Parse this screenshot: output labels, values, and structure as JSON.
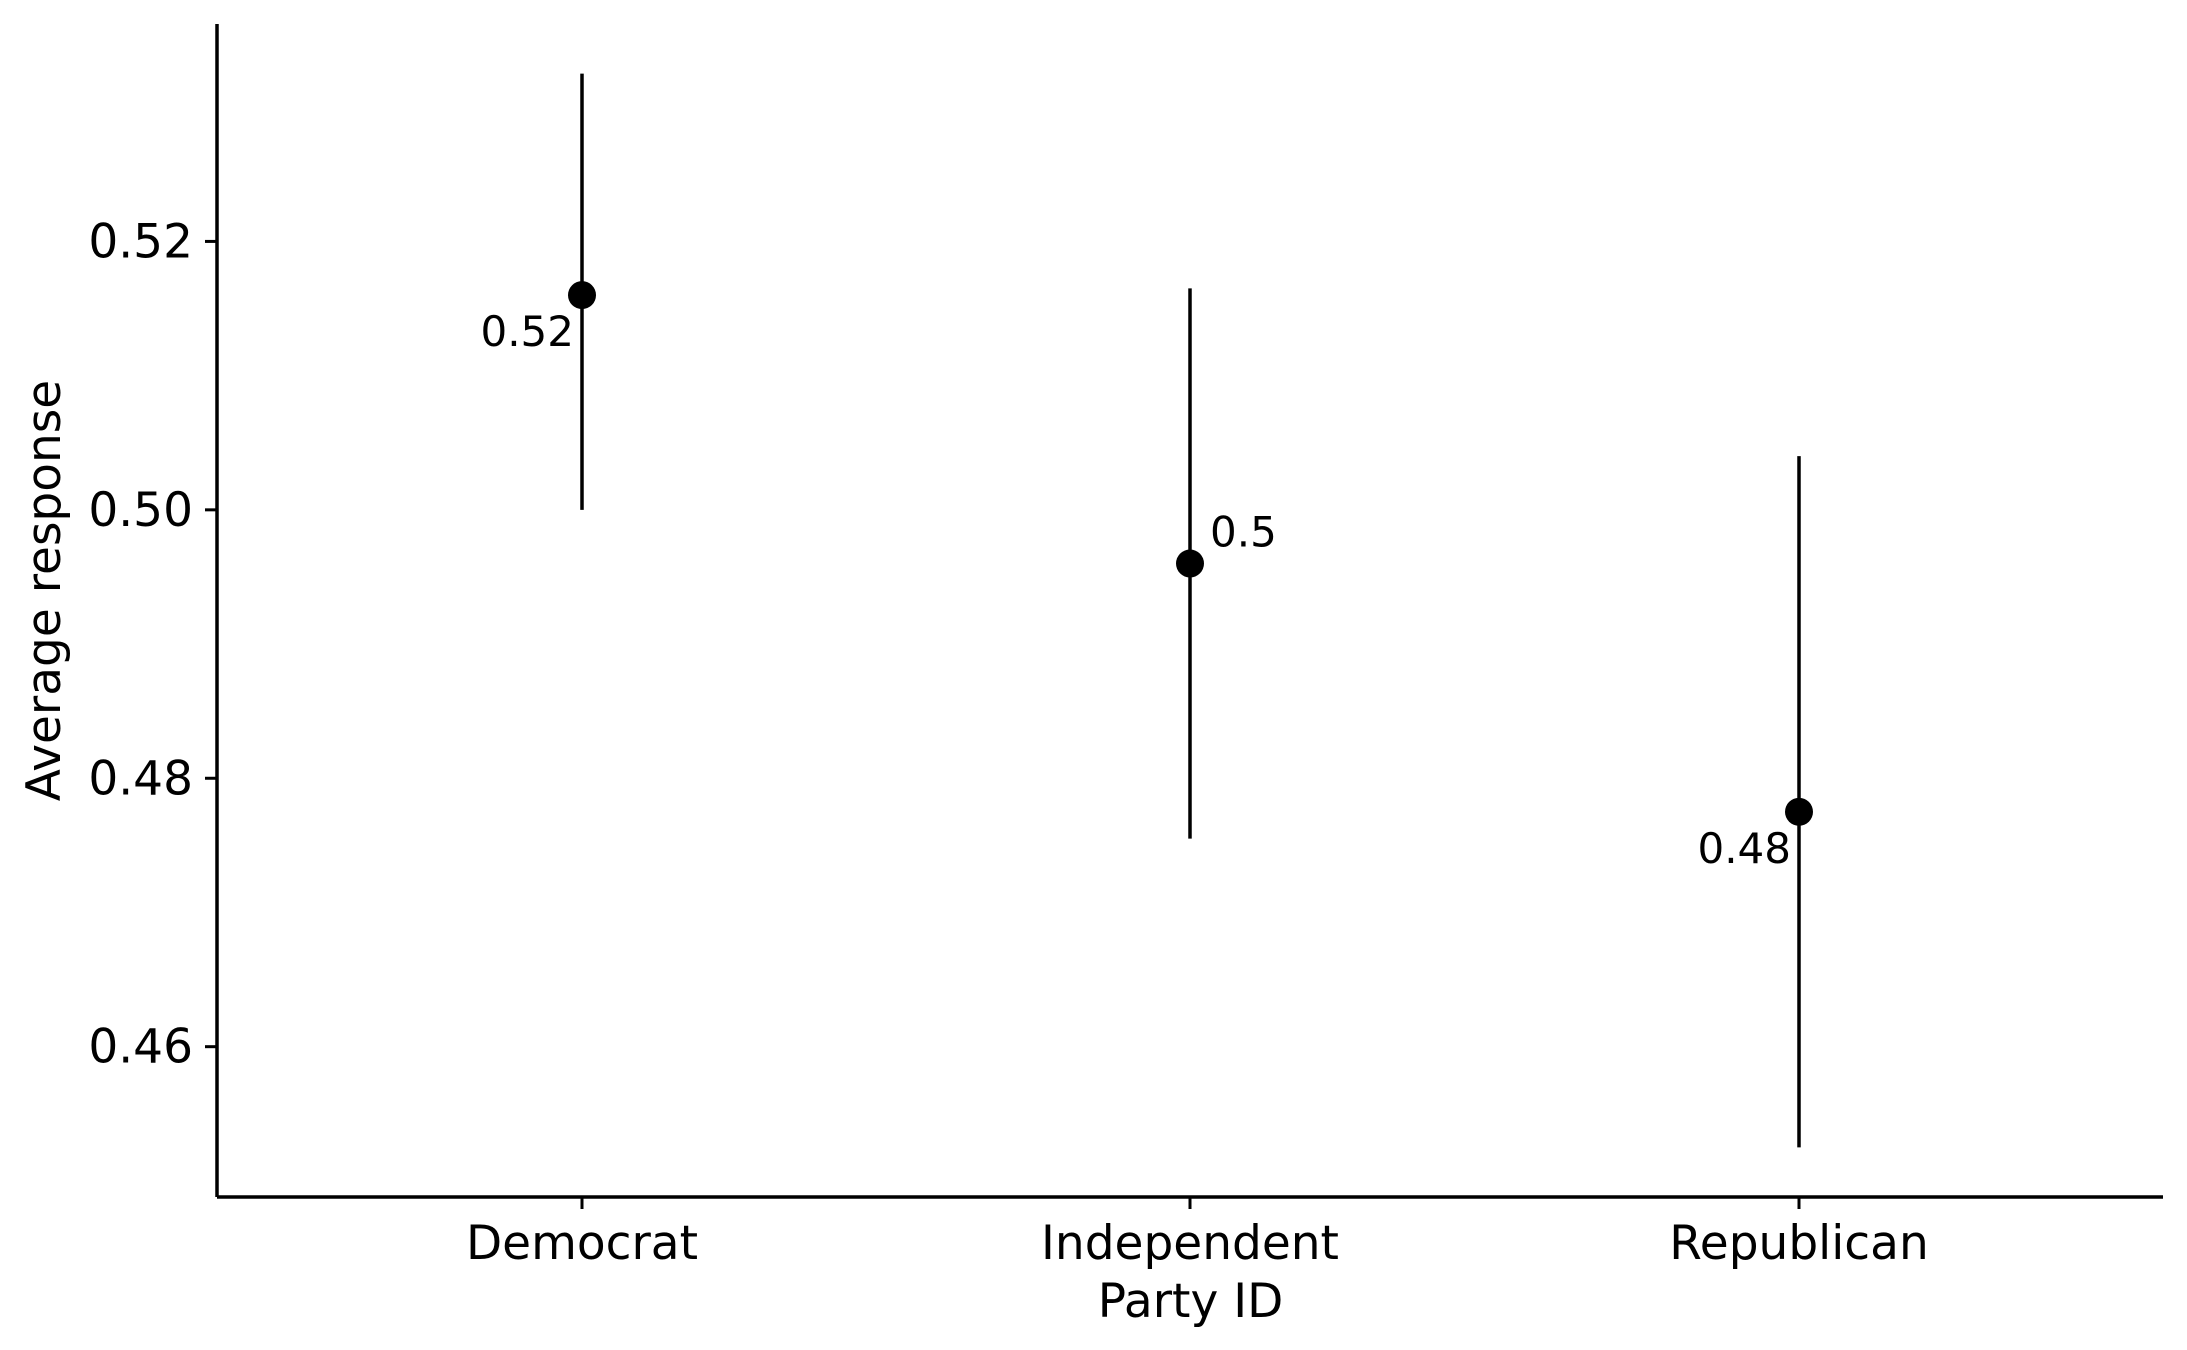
{
  "chart_data": {
    "type": "scatter",
    "categories": [
      "Democrat",
      "Independent",
      "Republican"
    ],
    "values": [
      0.516,
      0.496,
      0.4775
    ],
    "error_low": [
      0.5,
      0.4755,
      0.4525
    ],
    "error_high": [
      0.5325,
      0.5165,
      0.504
    ],
    "data_labels": [
      "0.52",
      "0.5",
      "0.48"
    ],
    "data_label_side": [
      "left",
      "right",
      "left"
    ],
    "xlabel": "Party ID",
    "ylabel": "Average response",
    "ylim": [
      0.4488,
      0.5362
    ],
    "yticks": [
      0.46,
      0.48,
      0.5,
      0.52
    ],
    "ytick_labels": [
      "0.46",
      "0.48",
      "0.50",
      "0.52"
    ],
    "grid": false,
    "color": "#000000"
  }
}
